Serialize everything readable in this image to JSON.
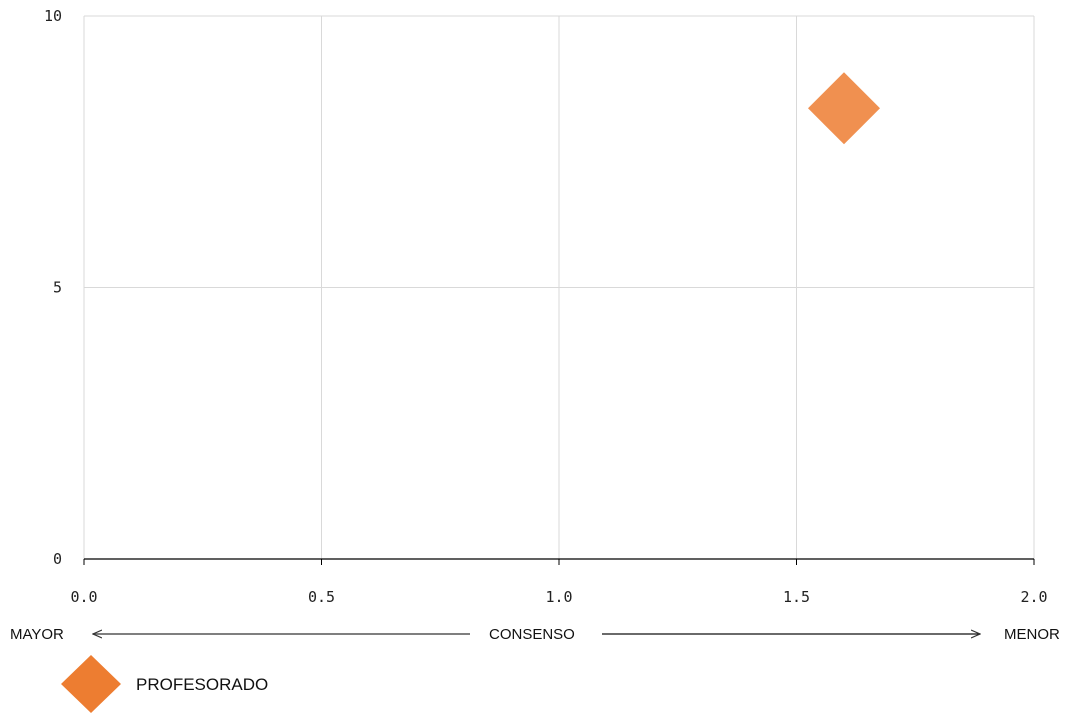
{
  "chart_data": {
    "type": "scatter",
    "xlim": [
      0,
      2
    ],
    "ylim": [
      0,
      10
    ],
    "x_ticks": [
      "0.0",
      "0.5",
      "1.0",
      "1.5",
      "2.0"
    ],
    "y_ticks": [
      "0",
      "5",
      "10"
    ],
    "grid": true,
    "series": [
      {
        "name": "PROFESORADO",
        "color": "#ED7D31",
        "marker": "diamond",
        "points": [
          {
            "x": 1.6,
            "y": 8.3
          }
        ]
      }
    ],
    "axis_annotation": {
      "left": "MAYOR",
      "center": "CONSENSO",
      "right": "MENOR"
    },
    "legend_position": "bottom-left"
  }
}
